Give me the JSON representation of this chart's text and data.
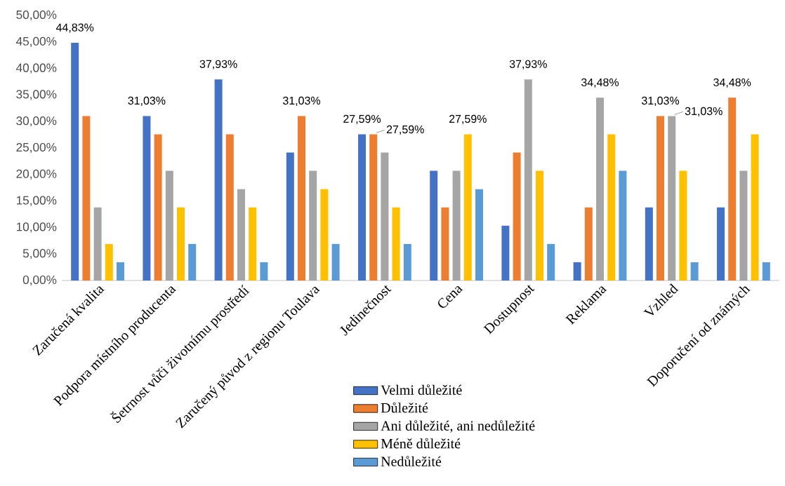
{
  "chart_data": {
    "type": "bar",
    "categories": [
      "Zaručená kvalita",
      "Podpora místního producenta",
      "Šetrnost vůči životnímu prostředí",
      "Zaručený původ z regionu Toulava",
      "Jedinečnost",
      "Cena",
      "Dostupnost",
      "Reklama",
      "Vzhled",
      "Doporučení od známých"
    ],
    "series": [
      {
        "name": "Velmi důležité",
        "color": "#4472c4",
        "values": [
          44.83,
          31.03,
          37.93,
          24.14,
          27.59,
          20.69,
          10.34,
          3.45,
          13.79,
          13.79
        ],
        "value_labels": [
          "44,83%",
          "31,03%",
          "37,93%",
          null,
          "27,59%",
          null,
          null,
          null,
          null,
          null
        ]
      },
      {
        "name": "Důležité",
        "color": "#ed7d31",
        "values": [
          31.03,
          27.59,
          27.59,
          31.03,
          27.59,
          13.79,
          24.14,
          13.79,
          31.03,
          34.48
        ],
        "value_labels": [
          null,
          null,
          null,
          "31,03%",
          "27,59%",
          null,
          null,
          null,
          "31,03%",
          "34,48%"
        ]
      },
      {
        "name": "Ani důležité, ani nedůležité",
        "color": "#a5a5a5",
        "values": [
          13.79,
          20.69,
          17.24,
          20.69,
          24.14,
          20.69,
          37.93,
          34.48,
          31.03,
          20.69
        ],
        "value_labels": [
          null,
          null,
          null,
          null,
          null,
          null,
          "37,93%",
          "34,48%",
          "31,03%",
          null
        ]
      },
      {
        "name": "Méně důležité",
        "color": "#ffc000",
        "values": [
          6.9,
          13.79,
          13.79,
          17.24,
          13.79,
          27.59,
          20.69,
          27.59,
          20.69,
          27.59
        ],
        "value_labels": [
          null,
          null,
          null,
          null,
          null,
          "27,59%",
          null,
          null,
          null,
          null
        ]
      },
      {
        "name": "Nedůležité",
        "color": "#5b9bd5",
        "values": [
          3.45,
          6.9,
          3.45,
          6.9,
          6.9,
          17.24,
          6.9,
          20.69,
          3.45,
          3.45
        ]
      }
    ],
    "ylim": [
      0,
      50
    ],
    "yticks": [
      {
        "value": 0,
        "label": "0,00%"
      },
      {
        "value": 5,
        "label": "5,00%"
      },
      {
        "value": 10,
        "label": "10,00%"
      },
      {
        "value": 15,
        "label": "15,00%"
      },
      {
        "value": 20,
        "label": "20,00%"
      },
      {
        "value": 25,
        "label": "25,00%"
      },
      {
        "value": 30,
        "label": "30,00%"
      },
      {
        "value": 35,
        "label": "35,00%"
      },
      {
        "value": 40,
        "label": "40,00%"
      },
      {
        "value": 45,
        "label": "45,00%"
      },
      {
        "value": 50,
        "label": "50,00%"
      }
    ],
    "grid": false,
    "legend": "bottom"
  }
}
